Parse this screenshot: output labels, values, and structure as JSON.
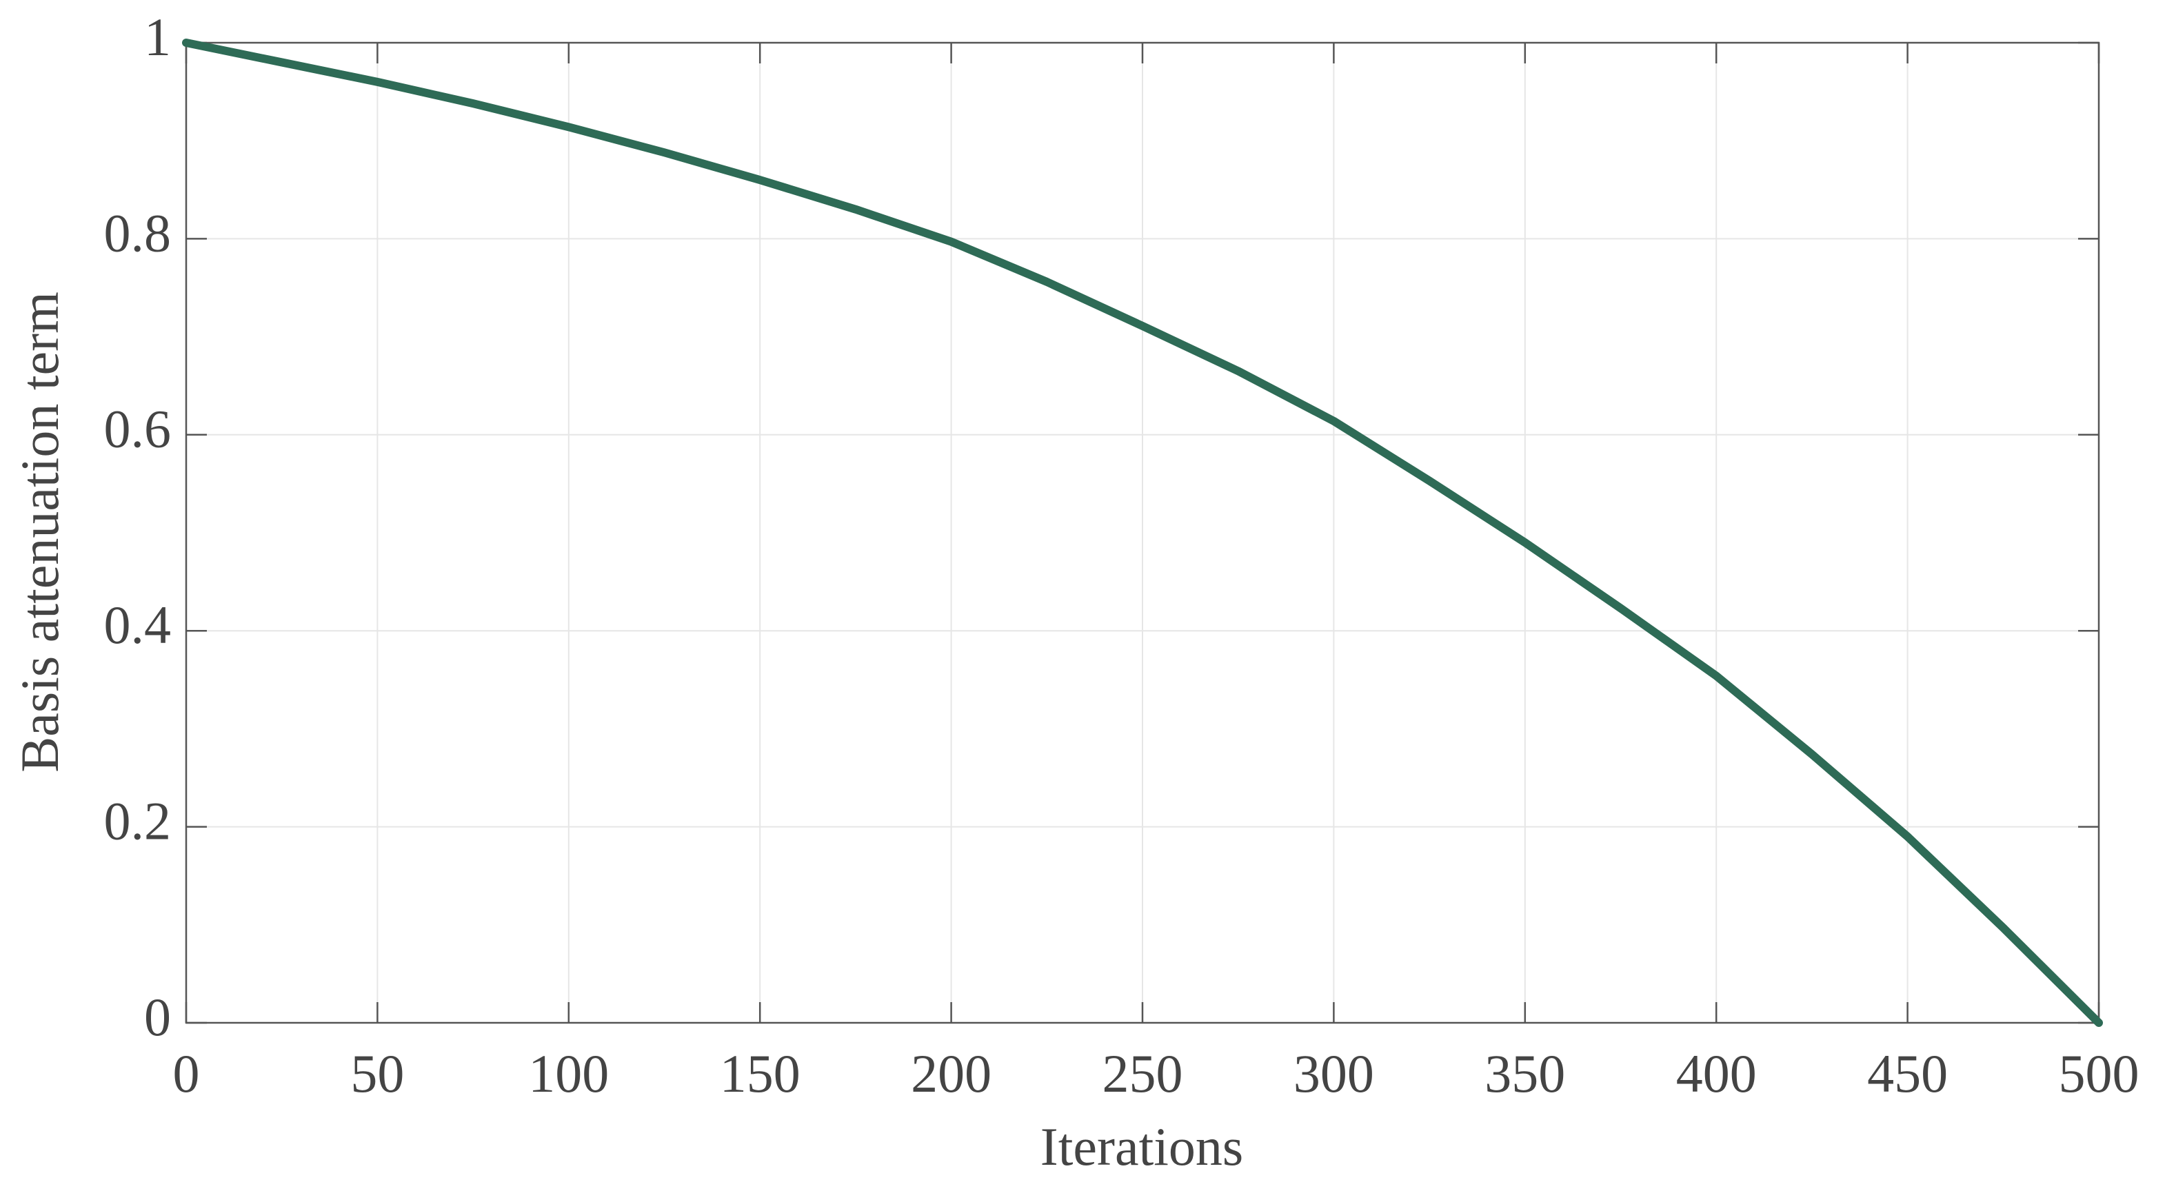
{
  "chart_data": {
    "type": "line",
    "xlabel": "Iterations",
    "ylabel": "Basis attenuation term",
    "x": [
      0,
      25,
      50,
      75,
      100,
      125,
      150,
      175,
      200,
      225,
      250,
      275,
      300,
      325,
      350,
      375,
      400,
      425,
      450,
      475,
      500
    ],
    "values": [
      1,
      0.98,
      0.96,
      0.938,
      0.914,
      0.888,
      0.86,
      0.83,
      0.797,
      0.756,
      0.711,
      0.665,
      0.614,
      0.553,
      0.49,
      0.423,
      0.354,
      0.274,
      0.19,
      0.097,
      0
    ],
    "color": "#2e6b56",
    "xlim": [
      0,
      500
    ],
    "xticks": [
      0,
      50,
      100,
      150,
      200,
      250,
      300,
      350,
      400,
      450,
      500
    ],
    "ylim": [
      0,
      1
    ],
    "yticks": [
      0,
      0.2,
      0.4,
      0.6,
      0.8,
      1
    ],
    "grid": true
  }
}
